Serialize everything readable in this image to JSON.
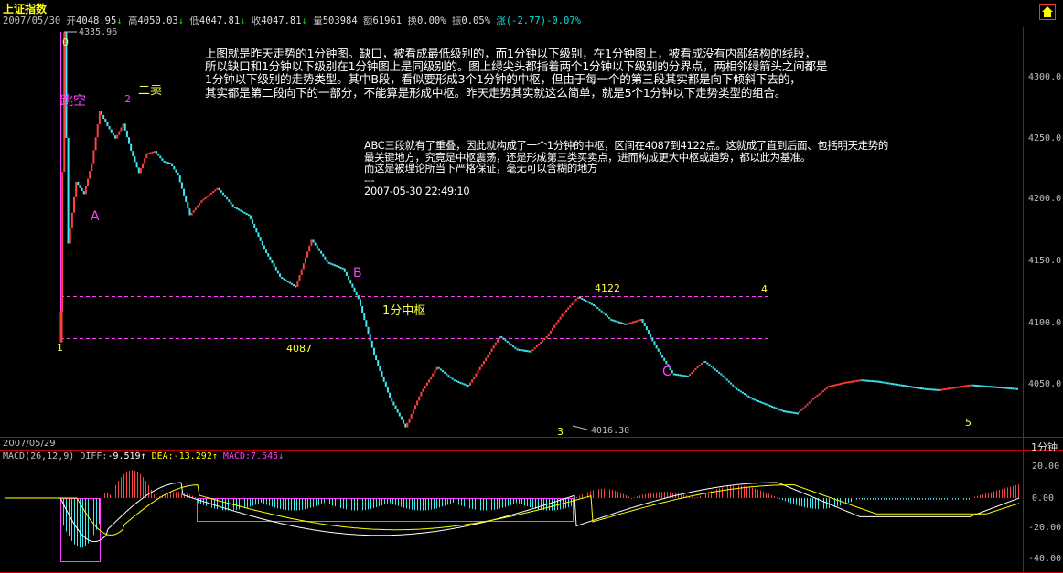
{
  "app": {
    "title": "上证指数"
  },
  "info_bar": {
    "date": "2007/05/30",
    "open_label": "开",
    "open": "4048.95",
    "open_arrow": "↓",
    "high_label": "高",
    "high": "4050.03",
    "high_arrow": "↓",
    "low_label": "低",
    "low": "4047.81",
    "low_arrow": "↓",
    "close_label": "收",
    "close": "4047.81",
    "close_arrow": "↓",
    "vol_label": "量",
    "vol": "503984",
    "amount_label": "额",
    "amount": "61961",
    "turnover_label": "换",
    "turnover": "0.00%",
    "amp_label": "振",
    "amp": "0.05%",
    "chg_label": "涨",
    "chg": "(-2.77)-0.07%"
  },
  "colors": {
    "up": "#ff4040",
    "down": "#40e8f0",
    "annot": "#ff40ff",
    "label_yellow": "#ffff40",
    "axis": "#c00000",
    "macd_diff": "#ffffff",
    "macd_dea": "#ffff00"
  },
  "main_chart": {
    "y_ticks": [
      "4300.0",
      "4250.0",
      "4200.0",
      "4150.0",
      "4100.0",
      "4050.0"
    ],
    "hi_label": "4335.96",
    "lo_label": "4016.30",
    "gap_label": "跳空",
    "sell2_label": "二卖",
    "pivot_label": "1分中枢",
    "zg_label": "4122",
    "zd_label": "4087",
    "points": {
      "p0": "0",
      "p1": "1",
      "p2": "2",
      "p3": "3",
      "p4": "4",
      "p5": "5"
    },
    "segments": {
      "a": "A",
      "b": "B",
      "c": "C"
    }
  },
  "commentary": {
    "lines": [
      "上图就是昨天走势的1分钟图。缺口，被看成最低级别的，而1分钟以下级别，在1分钟图上，被看成没有内部结构的线段，",
      "所以缺口和1分钟以下级别在1分钟图上是同级别的。图上绿尖头都指着两个1分钟以下级别的分界点，两相邻绿箭头之间都是",
      "1分钟以下级别的走势类型。其中B段，看似要形成3个1分钟的中枢，但由于每一个的第三段其实都是向下倾斜下去的，",
      "其实都是第二段向下的一部分，不能算是形成中枢。昨天走势其实就这么简单，就是5个1分钟以下走势类型的组合。"
    ],
    "lines2": [
      "ABC三段就有了重叠，因此就构成了一个1分钟的中枢，区间在4087到4122点。这就成了直到后面、包括明天走势的",
      "最关键地方，究竟是中枢震荡，还是形成第三类买卖点，进而构成更大中枢或趋势，都以此为基准。",
      "而这是被理论所当下严格保证，毫无可以含糊的地方",
      "---",
      "2007-05-30 22:49:10"
    ]
  },
  "bottom_bar": {
    "date": "2007/05/29",
    "period": "1分钟"
  },
  "macd": {
    "params": "MACD(26,12,9)",
    "diff_label": "DIFF:",
    "diff": "-9.519",
    "diff_arrow": "↑",
    "dea_label": "DEA:",
    "dea": "-13.292",
    "dea_arrow": "↑",
    "macd_label": "MACD:",
    "macd": "7.545",
    "macd_arrow": "↓",
    "y_ticks": [
      "20.00",
      "0.00",
      "-20.00",
      "-40.00"
    ]
  },
  "chart_data": {
    "type": "line",
    "title": "上证指数",
    "x_unit": "minute",
    "ylim": [
      4010,
      4340
    ],
    "series": [
      {
        "name": "上证指数",
        "x": [
          0,
          1,
          2,
          4,
          6,
          8,
          10,
          12,
          14,
          16,
          18,
          20,
          22,
          24,
          26,
          28,
          30,
          33,
          36,
          40,
          44,
          48,
          52,
          56,
          60,
          64,
          68,
          72,
          76,
          80,
          84,
          88,
          92,
          96,
          100,
          104,
          108,
          112,
          116,
          120,
          124,
          128,
          132,
          136,
          140,
          144,
          148,
          152,
          156,
          160,
          164,
          168,
          172,
          176,
          180,
          184,
          188,
          192,
          196,
          200,
          204,
          208,
          212,
          216,
          220,
          224,
          228,
          232,
          236,
          240,
          244
        ],
        "y": [
          4110,
          4335.96,
          4165,
          4215,
          4205,
          4230,
          4272,
          4260,
          4250,
          4262,
          4240,
          4222,
          4238,
          4240,
          4232,
          4230,
          4220,
          4188,
          4200,
          4210,
          4195,
          4188,
          4160,
          4138,
          4130,
          4168,
          4150,
          4145,
          4120,
          4075,
          4040,
          4016.3,
          4045,
          4065,
          4055,
          4050,
          4070,
          4090,
          4080,
          4078,
          4090,
          4108,
          4122,
          4115,
          4104,
          4100,
          4104,
          4080,
          4060,
          4058,
          4070,
          4060,
          4048,
          4040,
          4035,
          4030,
          4028,
          4040,
          4050,
          4053,
          4055,
          4054,
          4052,
          4050,
          4048,
          4047,
          4049,
          4051,
          4050,
          4049,
          4047.81
        ]
      }
    ]
  }
}
